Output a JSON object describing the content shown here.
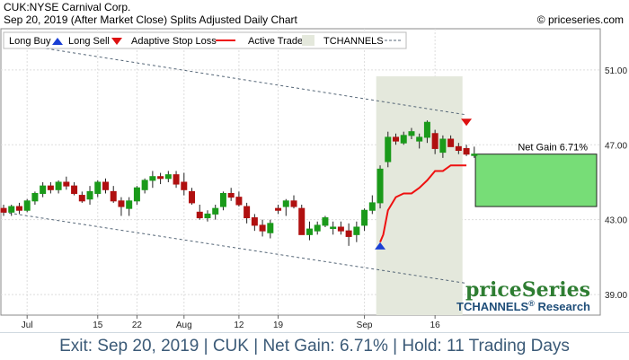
{
  "header": {
    "title": "CUK:NYSE Carnival Corp.",
    "subtitle": "Sep 20, 2019 (After Market Close)  Splits Adjusted Daily Chart",
    "copyright": "© priceseries.com"
  },
  "legend": {
    "long_buy": "Long Buy",
    "long_sell": "Long Sell",
    "adaptive_stop": "Adaptive Stop Loss",
    "active_trade": "Active Trade",
    "tchannels": "TCHANNELS"
  },
  "net_gain_label": "Net Gain 6.71%",
  "brand": {
    "name": "priceSeries",
    "sub": "TCHANNELS",
    "sub2": "Research"
  },
  "footer": "Exit: Sep 20, 2019 | CUK | Net Gain: 6.71% | Hold: 11 Trading Days",
  "colors": {
    "up": "#1a9a1a",
    "down": "#b01010",
    "stop": "#ee1111",
    "active": "#e4e8dc",
    "gain": "#77dd77",
    "brand": "#2e7d32",
    "brand2": "#1f4e79"
  },
  "chart_data": {
    "type": "candlestick",
    "y_ticks": [
      39.0,
      43.0,
      47.0,
      51.0
    ],
    "ylim": [
      37.9,
      53.2
    ],
    "x_ticks": [
      {
        "i": 3,
        "label": "Jul"
      },
      {
        "i": 12,
        "label": "15"
      },
      {
        "i": 17,
        "label": "22"
      },
      {
        "i": 23,
        "label": "Aug"
      },
      {
        "i": 30,
        "label": "12"
      },
      {
        "i": 35,
        "label": "19"
      },
      {
        "i": 46,
        "label": "Sep"
      },
      {
        "i": 55,
        "label": "16"
      }
    ],
    "candles": [
      [
        43.6,
        43.8,
        43.2,
        43.4
      ],
      [
        43.4,
        43.8,
        43.2,
        43.7
      ],
      [
        43.7,
        43.9,
        43.3,
        43.5
      ],
      [
        43.5,
        44.1,
        43.4,
        44.0
      ],
      [
        44.0,
        44.5,
        43.8,
        44.4
      ],
      [
        44.4,
        45.0,
        44.2,
        44.8
      ],
      [
        44.8,
        45.0,
        44.4,
        44.6
      ],
      [
        44.6,
        45.1,
        44.4,
        45.0
      ],
      [
        45.0,
        45.3,
        44.6,
        44.8
      ],
      [
        44.8,
        45.0,
        44.3,
        44.4
      ],
      [
        44.3,
        44.5,
        43.9,
        44.0
      ],
      [
        44.1,
        44.8,
        43.8,
        44.5
      ],
      [
        44.4,
        45.1,
        44.2,
        45.0
      ],
      [
        45.0,
        45.2,
        44.4,
        44.6
      ],
      [
        44.5,
        44.8,
        43.9,
        44.0
      ],
      [
        44.0,
        44.2,
        43.2,
        43.7
      ],
      [
        43.6,
        44.2,
        43.2,
        44.0
      ],
      [
        44.0,
        44.8,
        43.8,
        44.7
      ],
      [
        44.6,
        45.2,
        44.4,
        45.1
      ],
      [
        45.1,
        45.6,
        44.7,
        45.3
      ],
      [
        45.3,
        45.5,
        44.9,
        45.2
      ],
      [
        45.2,
        45.6,
        45.0,
        45.4
      ],
      [
        45.4,
        45.6,
        44.7,
        44.9
      ],
      [
        45.0,
        45.5,
        44.3,
        44.6
      ],
      [
        44.5,
        44.7,
        43.8,
        43.9
      ],
      [
        43.4,
        43.8,
        43.0,
        43.1
      ],
      [
        43.1,
        43.5,
        42.9,
        43.3
      ],
      [
        43.3,
        43.8,
        43.0,
        43.6
      ],
      [
        43.7,
        44.5,
        43.5,
        44.4
      ],
      [
        44.4,
        44.7,
        44.0,
        44.2
      ],
      [
        44.2,
        44.5,
        43.7,
        43.8
      ],
      [
        43.7,
        43.9,
        42.8,
        43.1
      ],
      [
        43.1,
        43.3,
        42.4,
        42.7
      ],
      [
        42.7,
        43.0,
        42.1,
        42.4
      ],
      [
        42.3,
        43.0,
        42.0,
        42.8
      ],
      [
        43.6,
        43.8,
        43.3,
        43.5
      ],
      [
        43.7,
        44.1,
        43.2,
        44.0
      ],
      [
        44.0,
        44.3,
        43.6,
        43.7
      ],
      [
        43.6,
        43.8,
        42.2,
        42.2
      ],
      [
        42.2,
        42.9,
        41.9,
        42.5
      ],
      [
        42.4,
        42.9,
        42.2,
        42.7
      ],
      [
        42.7,
        43.2,
        42.6,
        43.1
      ],
      [
        42.6,
        42.9,
        42.2,
        42.6
      ],
      [
        42.6,
        42.9,
        42.2,
        42.4
      ],
      [
        42.4,
        42.8,
        41.6,
        42.1
      ],
      [
        42.2,
        42.9,
        41.8,
        42.6
      ],
      [
        42.7,
        43.6,
        42.4,
        43.5
      ],
      [
        43.5,
        44.3,
        43.3,
        43.9
      ],
      [
        43.9,
        45.9,
        43.6,
        45.7
      ],
      [
        46.1,
        47.7,
        45.8,
        47.4
      ],
      [
        47.4,
        47.6,
        47.0,
        47.2
      ],
      [
        47.1,
        47.7,
        47.0,
        47.5
      ],
      [
        47.5,
        47.9,
        47.3,
        47.7
      ],
      [
        47.2,
        47.6,
        46.8,
        47.4
      ],
      [
        47.4,
        48.3,
        47.1,
        48.2
      ],
      [
        47.6,
        47.8,
        46.5,
        46.8
      ],
      [
        46.6,
        47.5,
        46.3,
        47.3
      ],
      [
        47.3,
        47.5,
        46.9,
        46.9
      ],
      [
        46.9,
        47.1,
        46.5,
        46.7
      ],
      [
        46.8,
        47.0,
        46.4,
        46.5
      ],
      [
        46.5,
        46.9,
        46.3,
        46.5
      ]
    ],
    "adaptive_stop": [
      {
        "i": 48,
        "v": 41.8
      },
      {
        "i": 48.4,
        "v": 42.2
      },
      {
        "i": 49,
        "v": 43.5
      },
      {
        "i": 50,
        "v": 44.2
      },
      {
        "i": 51,
        "v": 44.4
      },
      {
        "i": 52,
        "v": 44.4
      },
      {
        "i": 53,
        "v": 44.7
      },
      {
        "i": 54,
        "v": 45.1
      },
      {
        "i": 55,
        "v": 45.6
      },
      {
        "i": 56,
        "v": 45.6
      },
      {
        "i": 57,
        "v": 45.9
      },
      {
        "i": 58,
        "v": 45.9
      },
      {
        "i": 59,
        "v": 45.9
      }
    ],
    "buy": {
      "i": 48,
      "v": 41.6
    },
    "sell": {
      "i": 59,
      "v": 48.2
    },
    "active_range": [
      47.5,
      58.5
    ],
    "channel_upper": [
      {
        "i": 0,
        "v": 52.5
      },
      {
        "i": 59,
        "v": 48.6
      }
    ],
    "channel_lower": [
      {
        "i": 0,
        "v": 43.4
      },
      {
        "i": 59,
        "v": 39.6
      }
    ],
    "net_gain_box": [
      43.7,
      46.5
    ]
  }
}
